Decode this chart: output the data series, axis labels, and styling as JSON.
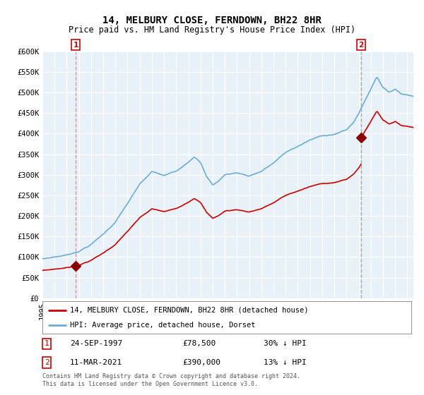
{
  "title": "14, MELBURY CLOSE, FERNDOWN, BH22 8HR",
  "subtitle": "Price paid vs. HM Land Registry's House Price Index (HPI)",
  "ylim": [
    0,
    600000
  ],
  "yticks": [
    0,
    50000,
    100000,
    150000,
    200000,
    250000,
    300000,
    350000,
    400000,
    450000,
    500000,
    550000,
    600000
  ],
  "ytick_labels": [
    "£0",
    "£50K",
    "£100K",
    "£150K",
    "£200K",
    "£250K",
    "£300K",
    "£350K",
    "£400K",
    "£450K",
    "£500K",
    "£550K",
    "£600K"
  ],
  "hpi_color": "#6aaed6",
  "sale_color": "#cc0000",
  "marker_color": "#8b0000",
  "dashed_line1_color": "#ff8888",
  "dashed_line2_color": "#aaaaaa",
  "legend_label_sale": "14, MELBURY CLOSE, FERNDOWN, BH22 8HR (detached house)",
  "legend_label_hpi": "HPI: Average price, detached house, Dorset",
  "transaction1_date": "24-SEP-1997",
  "transaction1_price": "£78,500",
  "transaction1_note": "30% ↓ HPI",
  "transaction2_date": "11-MAR-2021",
  "transaction2_price": "£390,000",
  "transaction2_note": "13% ↓ HPI",
  "footer": "Contains HM Land Registry data © Crown copyright and database right 2024.\nThis data is licensed under the Open Government Licence v3.0.",
  "background_color": "#ffffff",
  "chart_bg_color": "#e8f0f8",
  "grid_color": "#ffffff",
  "title_fontsize": 10,
  "subtitle_fontsize": 8.5,
  "axis_fontsize": 7.5,
  "sale1_year": 1997.73,
  "sale1_price": 78500,
  "sale2_year": 2021.19,
  "sale2_price": 390000
}
